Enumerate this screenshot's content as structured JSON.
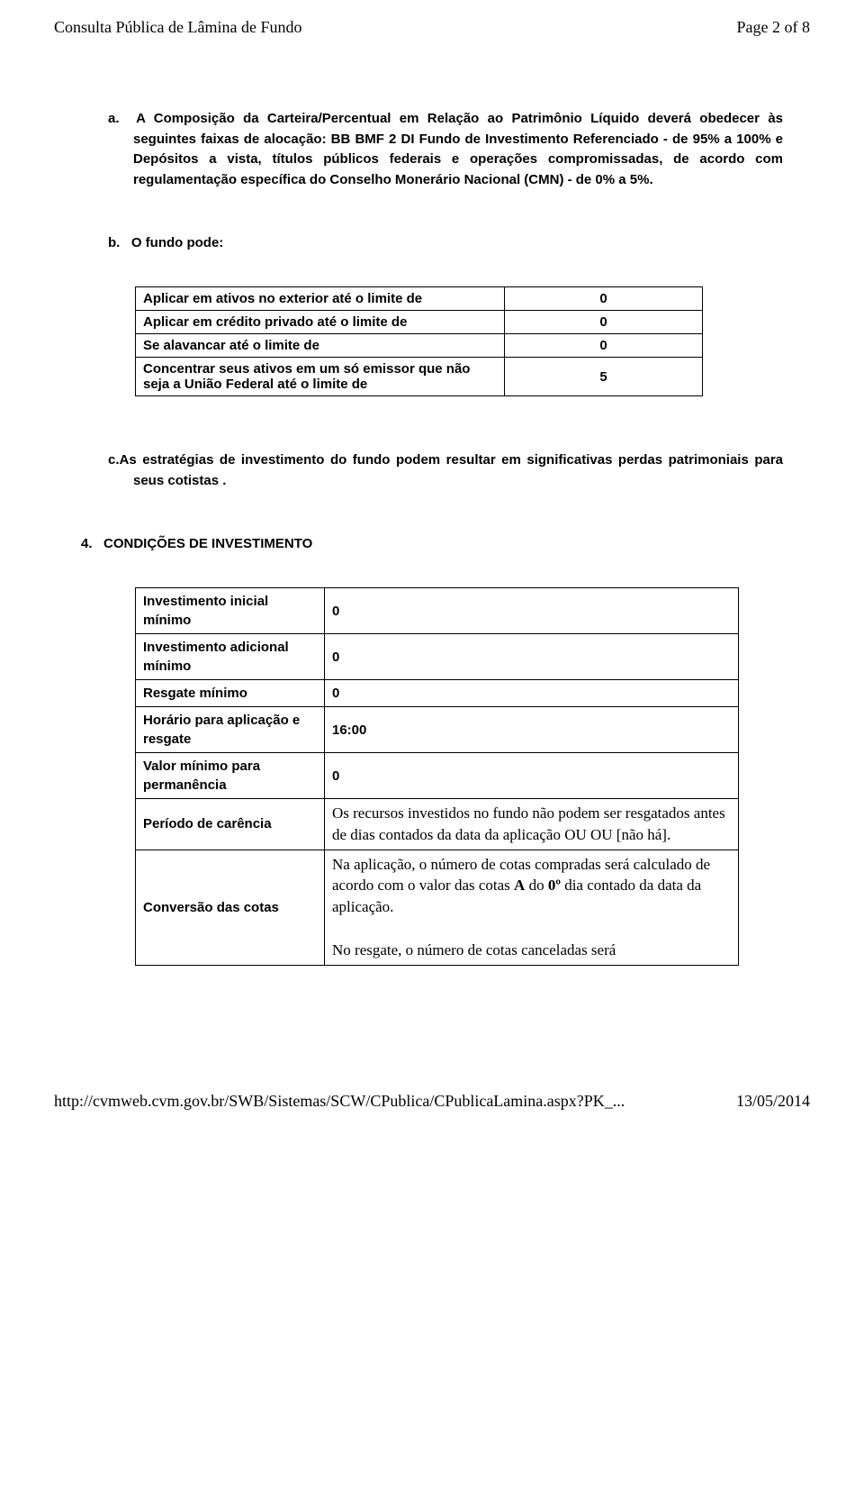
{
  "header": {
    "title": "Consulta Pública de Lâmina de Fundo",
    "pageinfo": "Page 2 of 8"
  },
  "section_a": {
    "text": "a.  A Composição da Carteira/Percentual em Relação ao Patrimônio Líquido deverá obedecer às seguintes faixas de alocação: BB BMF 2 DI Fundo de Investimento Referenciado - de 95% a 100% e Depósitos a vista, títulos públicos federais e operações compromissadas, de acordo com regulamentação específica do Conselho Monerário Nacional (CMN) - de 0% a 5%."
  },
  "section_b": {
    "label": "b.   O fundo pode:"
  },
  "table_b": {
    "rows": [
      {
        "label": "Aplicar em ativos no exterior até o limite de",
        "value": "0"
      },
      {
        "label": "Aplicar em crédito privado até o limite de",
        "value": "0"
      },
      {
        "label": "Se alavancar até o limite de",
        "value": "0"
      },
      {
        "label": "Concentrar seus ativos em um só emissor que não seja a União Federal até o limite de",
        "value": "5"
      }
    ]
  },
  "section_c": {
    "text": "c.As estratégias de investimento do fundo podem resultar em significativas perdas patrimoniais para seus cotistas ."
  },
  "section_4": {
    "label": "4.   CONDIÇÕES DE INVESTIMENTO"
  },
  "table_4": {
    "rows": [
      {
        "label": "Investimento inicial mínimo",
        "value": "0",
        "boldval": true
      },
      {
        "label": "Investimento adicional mínimo",
        "value": "0",
        "boldval": true
      },
      {
        "label": "Resgate mínimo",
        "value": "0",
        "boldval": true
      },
      {
        "label": "Horário para aplicação e resgate",
        "value": "16:00",
        "boldval": true
      },
      {
        "label": "Valor mínimo para permanência",
        "value": "0",
        "boldval": true
      },
      {
        "label": "Período de carência",
        "value": "Os recursos investidos no fundo não podem ser resgatados antes de dias contados da data da aplicação OU OU [não há].",
        "boldval": false
      }
    ],
    "conversao": {
      "label": "Conversão das cotas",
      "para1_pre": "Na aplicação, o número de cotas compradas será calculado de acordo com o valor das cotas ",
      "para1_bold1": "A",
      "para1_mid": " do ",
      "para1_bold2": "0º",
      "para1_post": " dia contado da data da aplicação.",
      "para2": "No resgate, o número de cotas canceladas será"
    }
  },
  "footer": {
    "url": "http://cvmweb.cvm.gov.br/SWB/Sistemas/SCW/CPublica/CPublicaLamina.aspx?PK_...",
    "date": "13/05/2014"
  }
}
